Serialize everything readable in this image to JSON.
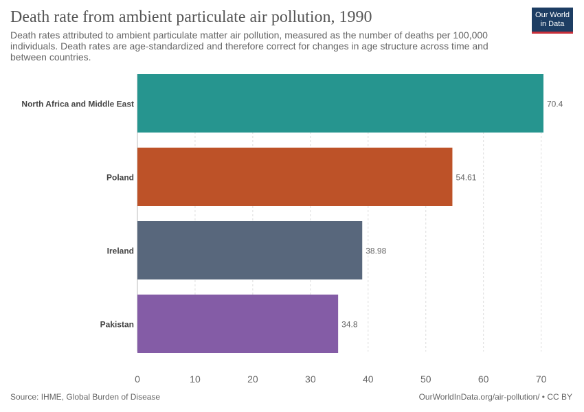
{
  "header": {
    "title": "Death rate from ambient particulate air pollution, 1990",
    "subtitle": "Death rates attributed to ambient particulate matter air pollution, measured as the number of deaths per 100,000 individuals. Death rates are age-standardized and therefore correct for changes in age structure across time and between countries."
  },
  "logo": {
    "line1": "Our World",
    "line2": "in Data"
  },
  "footer": {
    "source": "Source: IHME, Global Burden of Disease",
    "license": "OurWorldInData.org/air-pollution/ • CC BY"
  },
  "chart_data": {
    "type": "bar",
    "orientation": "horizontal",
    "categories": [
      "North Africa and Middle East",
      "Poland",
      "Ireland",
      "Pakistan"
    ],
    "values": [
      70.4,
      54.61,
      38.98,
      34.8
    ],
    "value_labels": [
      "70.4",
      "54.61",
      "38.98",
      "34.8"
    ],
    "colors": [
      "#26958f",
      "#bd5228",
      "#58677c",
      "#845ca6"
    ],
    "xlim": [
      0,
      70.4
    ],
    "xticks": [
      0,
      10,
      20,
      30,
      40,
      50,
      60,
      70
    ],
    "grid": true
  }
}
